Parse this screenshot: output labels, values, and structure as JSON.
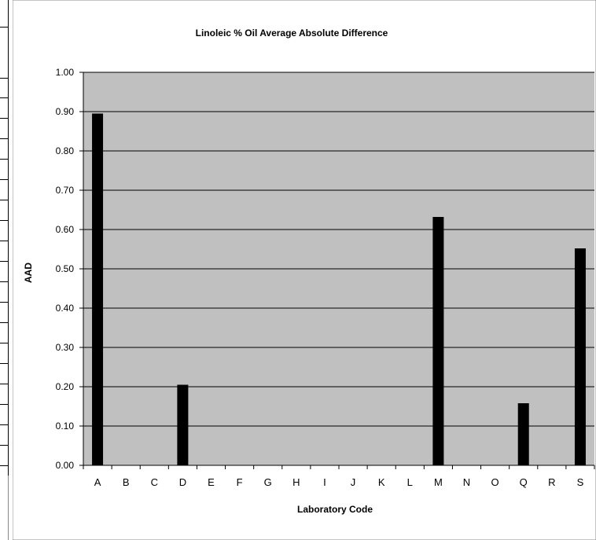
{
  "chart_data": {
    "type": "bar",
    "title": "Linoleic % Oil Average Absolute Difference",
    "xlabel": "Laboratory Code",
    "ylabel": "AAD",
    "ylim": [
      0,
      1.0
    ],
    "yticks": [
      "0.00",
      "0.10",
      "0.20",
      "0.30",
      "0.40",
      "0.50",
      "0.60",
      "0.70",
      "0.80",
      "0.90",
      "1.00"
    ],
    "categories": [
      "A",
      "B",
      "C",
      "D",
      "E",
      "F",
      "G",
      "H",
      "I",
      "J",
      "K",
      "L",
      "M",
      "N",
      "O",
      "Q",
      "R",
      "S"
    ],
    "values": [
      0.895,
      0,
      0,
      0.205,
      0,
      0,
      0,
      0,
      0,
      0,
      0,
      0,
      0.632,
      0,
      0,
      0.158,
      0,
      0.552
    ],
    "grid": true,
    "legend": "none",
    "colors": {
      "plot_background": "#c0c0c0",
      "bar": "#000000",
      "gridline": "#000000"
    }
  }
}
